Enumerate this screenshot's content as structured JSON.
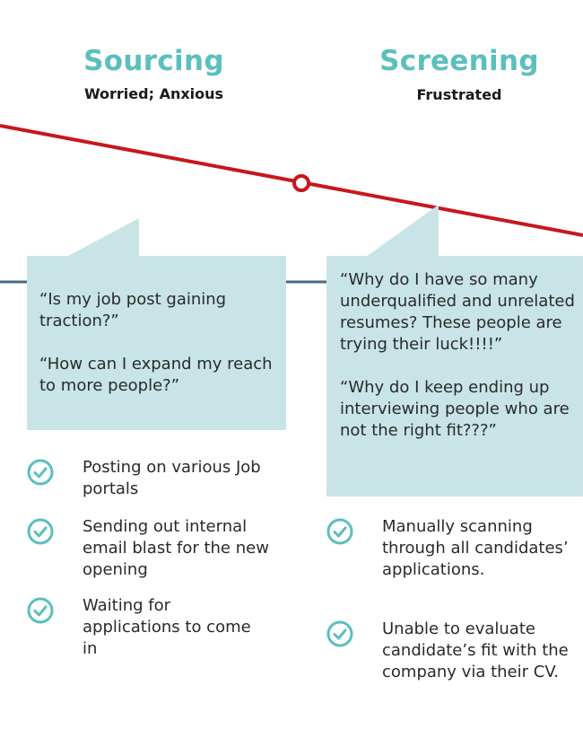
{
  "colors": {
    "accent": "#5bbfbd",
    "curve": "#c8161d",
    "bubble": "#c8e4e6",
    "timeline": "#4a6b85"
  },
  "stages": [
    {
      "title": "Sourcing",
      "emotion": "Worried; Anxious",
      "quotes": [
        "“Is my job post gaining traction?”",
        "“How can I expand my reach to more people?”"
      ],
      "actions": [
        "Posting on various Job portals",
        "Sending out internal email blast for the new opening",
        "Waiting for applications to come in"
      ]
    },
    {
      "title": "Screening",
      "emotion": "Frustrated",
      "quotes": [
        "“Why do I have so many underqualified and unrelated resumes? These people are trying their luck!!!!”",
        "“Why do I keep ending up interviewing people who are not the right fit???”"
      ],
      "actions": [
        "Manually scanning through all candidates’ applications.",
        "Unable to evaluate candidate’s fit with the company via their CV."
      ]
    }
  ],
  "icons": {
    "action": "check-circle-icon"
  }
}
